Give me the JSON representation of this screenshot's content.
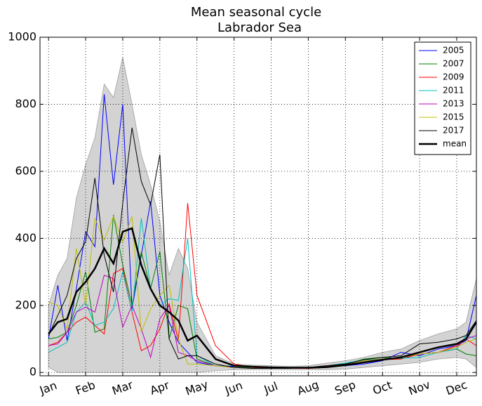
{
  "chart_data": {
    "type": "line",
    "title": "Mean seasonal cycle",
    "subtitle": "Labrador Sea",
    "x": [
      0,
      0.25,
      0.5,
      0.75,
      1.0,
      1.25,
      1.5,
      1.75,
      2.0,
      2.25,
      2.5,
      2.75,
      3.0,
      3.25,
      3.5,
      3.75,
      4.0,
      4.5,
      5.0,
      5.5,
      6.0,
      6.5,
      7.0,
      7.5,
      8.0,
      8.5,
      9.0,
      9.5,
      10.0,
      10.5,
      11.0,
      11.25,
      11.53
    ],
    "xlim": [
      -0.23,
      11.53
    ],
    "xticks": [
      {
        "value": 0,
        "label": "Jan"
      },
      {
        "value": 1,
        "label": "Feb"
      },
      {
        "value": 2,
        "label": "Mar"
      },
      {
        "value": 3,
        "label": "Apr"
      },
      {
        "value": 4,
        "label": "May"
      },
      {
        "value": 5,
        "label": "Jun"
      },
      {
        "value": 6,
        "label": "Jul"
      },
      {
        "value": 7,
        "label": "Aug"
      },
      {
        "value": 8,
        "label": "Sep"
      },
      {
        "value": 9,
        "label": "Oct"
      },
      {
        "value": 10,
        "label": "Nov"
      },
      {
        "value": 11,
        "label": "Dec"
      }
    ],
    "ylim": [
      -10,
      1000
    ],
    "yticks": [
      0,
      200,
      400,
      600,
      800,
      1000
    ],
    "grid": true,
    "legend": "upper right",
    "band": {
      "color": "#d3d3d3",
      "upper": [
        200,
        290,
        340,
        520,
        620,
        700,
        860,
        820,
        940,
        800,
        650,
        560,
        450,
        290,
        370,
        310,
        150,
        50,
        25,
        22,
        20,
        18,
        20,
        28,
        35,
        45,
        60,
        70,
        95,
        115,
        130,
        150,
        280
      ],
      "lower": [
        15,
        0,
        0,
        0,
        0,
        0,
        0,
        0,
        0,
        0,
        0,
        0,
        0,
        0,
        0,
        0,
        0,
        5,
        8,
        8,
        8,
        8,
        8,
        8,
        10,
        15,
        20,
        25,
        30,
        40,
        45,
        40,
        15
      ]
    },
    "series": [
      {
        "name": "2005",
        "color": "#0000ff",
        "linewidth": 1,
        "values": [
          100,
          260,
          95,
          250,
          420,
          375,
          830,
          560,
          800,
          190,
          350,
          510,
          230,
          150,
          90,
          60,
          30,
          20,
          18,
          18,
          15,
          14,
          13,
          20,
          20,
          25,
          35,
          60,
          50,
          70,
          80,
          95,
          230
        ]
      },
      {
        "name": "2007",
        "color": "#008000",
        "linewidth": 1,
        "values": [
          100,
          105,
          120,
          200,
          300,
          120,
          130,
          470,
          320,
          200,
          360,
          250,
          360,
          100,
          200,
          190,
          40,
          20,
          15,
          15,
          12,
          12,
          12,
          15,
          25,
          40,
          45,
          40,
          55,
          60,
          70,
          55,
          50
        ]
      },
      {
        "name": "2009",
        "color": "#ff0000",
        "linewidth": 1,
        "values": [
          80,
          90,
          120,
          150,
          165,
          140,
          115,
          295,
          310,
          180,
          65,
          80,
          130,
          205,
          95,
          505,
          230,
          80,
          25,
          15,
          12,
          12,
          12,
          15,
          22,
          30,
          38,
          40,
          55,
          60,
          80,
          100,
          80
        ]
      },
      {
        "name": "2011",
        "color": "#00bfbf",
        "linewidth": 1,
        "values": [
          60,
          75,
          90,
          180,
          210,
          140,
          150,
          190,
          300,
          180,
          460,
          250,
          200,
          220,
          215,
          400,
          50,
          20,
          15,
          12,
          12,
          12,
          15,
          20,
          28,
          38,
          40,
          42,
          45,
          60,
          70,
          110,
          100
        ]
      },
      {
        "name": "2013",
        "color": "#bf00bf",
        "linewidth": 1,
        "values": [
          80,
          85,
          120,
          180,
          195,
          180,
          290,
          280,
          135,
          200,
          130,
          45,
          160,
          200,
          60,
          50,
          35,
          20,
          15,
          12,
          12,
          12,
          15,
          20,
          25,
          35,
          40,
          45,
          55,
          60,
          75,
          100,
          110
        ]
      },
      {
        "name": "2015",
        "color": "#bfbf00",
        "linewidth": 1,
        "values": [
          210,
          200,
          130,
          370,
          200,
          460,
          395,
          465,
          390,
          465,
          120,
          190,
          230,
          260,
          100,
          25,
          25,
          20,
          15,
          12,
          12,
          12,
          15,
          20,
          25,
          35,
          40,
          45,
          55,
          60,
          75,
          90,
          100
        ]
      },
      {
        "name": "2017",
        "color": "#000000",
        "linewidth": 1,
        "values": [
          110,
          170,
          230,
          340,
          390,
          580,
          350,
          240,
          505,
          730,
          570,
          500,
          650,
          100,
          40,
          50,
          50,
          25,
          15,
          12,
          12,
          12,
          15,
          20,
          25,
          38,
          45,
          50,
          85,
          90,
          100,
          110,
          155
        ]
      },
      {
        "name": "mean",
        "color": "#000000",
        "linewidth": 2.5,
        "values": [
          115,
          150,
          160,
          240,
          270,
          310,
          370,
          325,
          420,
          430,
          320,
          250,
          200,
          180,
          155,
          95,
          110,
          40,
          20,
          17,
          15,
          14,
          14,
          16,
          22,
          30,
          38,
          45,
          60,
          75,
          85,
          100,
          150
        ]
      }
    ]
  }
}
